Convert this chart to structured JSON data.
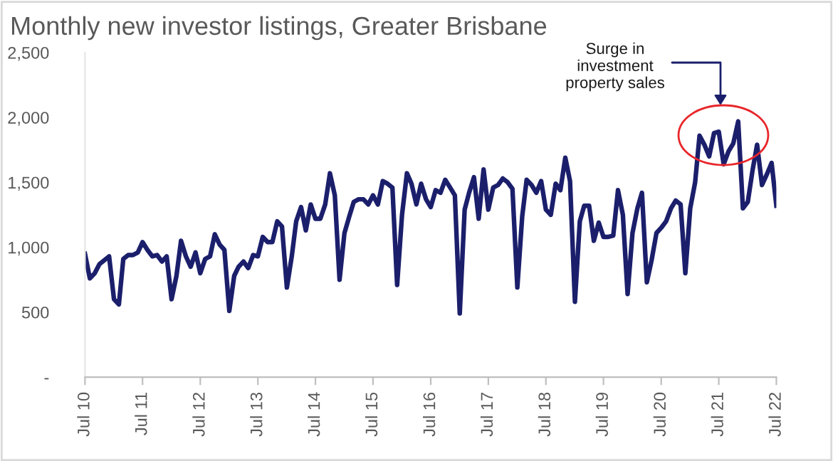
{
  "chart_data": {
    "type": "line",
    "title": "Monthly new investor listings, Greater Brisbane",
    "x": [
      "2010-07",
      "2010-08",
      "2010-09",
      "2010-10",
      "2010-11",
      "2010-12",
      "2011-01",
      "2011-02",
      "2011-03",
      "2011-04",
      "2011-05",
      "2011-06",
      "2011-07",
      "2011-08",
      "2011-09",
      "2011-10",
      "2011-11",
      "2011-12",
      "2012-01",
      "2012-02",
      "2012-03",
      "2012-04",
      "2012-05",
      "2012-06",
      "2012-07",
      "2012-08",
      "2012-09",
      "2012-10",
      "2012-11",
      "2012-12",
      "2013-01",
      "2013-02",
      "2013-03",
      "2013-04",
      "2013-05",
      "2013-06",
      "2013-07",
      "2013-08",
      "2013-09",
      "2013-10",
      "2013-11",
      "2013-12",
      "2014-01",
      "2014-02",
      "2014-03",
      "2014-04",
      "2014-05",
      "2014-06",
      "2014-07",
      "2014-08",
      "2014-09",
      "2014-10",
      "2014-11",
      "2014-12",
      "2015-01",
      "2015-02",
      "2015-03",
      "2015-04",
      "2015-05",
      "2015-06",
      "2015-07",
      "2015-08",
      "2015-09",
      "2015-10",
      "2015-11",
      "2015-12",
      "2016-01",
      "2016-02",
      "2016-03",
      "2016-04",
      "2016-05",
      "2016-06",
      "2016-07",
      "2016-08",
      "2016-09",
      "2016-10",
      "2016-11",
      "2016-12",
      "2017-01",
      "2017-02",
      "2017-03",
      "2017-04",
      "2017-05",
      "2017-06",
      "2017-07",
      "2017-08",
      "2017-09",
      "2017-10",
      "2017-11",
      "2017-12",
      "2018-01",
      "2018-02",
      "2018-03",
      "2018-04",
      "2018-05",
      "2018-06",
      "2018-07",
      "2018-08",
      "2018-09",
      "2018-10",
      "2018-11",
      "2018-12",
      "2019-01",
      "2019-02",
      "2019-03",
      "2019-04",
      "2019-05",
      "2019-06",
      "2019-07",
      "2019-08",
      "2019-09",
      "2019-10",
      "2019-11",
      "2019-12",
      "2020-01",
      "2020-02",
      "2020-03",
      "2020-04",
      "2020-05",
      "2020-06",
      "2020-07",
      "2020-08",
      "2020-09",
      "2020-10",
      "2020-11",
      "2020-12",
      "2021-01",
      "2021-02",
      "2021-03",
      "2021-04",
      "2021-05",
      "2021-06",
      "2021-07",
      "2021-08",
      "2021-09",
      "2021-10",
      "2021-11",
      "2021-12",
      "2022-01",
      "2022-02",
      "2022-03",
      "2022-04",
      "2022-05",
      "2022-06",
      "2022-07"
    ],
    "series": [
      {
        "color": "#1b1f6b",
        "values": [
          950,
          760,
          800,
          870,
          900,
          930,
          600,
          560,
          910,
          940,
          940,
          960,
          1040,
          980,
          930,
          940,
          890,
          930,
          600,
          780,
          1050,
          930,
          850,
          960,
          800,
          910,
          930,
          1100,
          1020,
          980,
          510,
          780,
          850,
          890,
          840,
          940,
          930,
          1080,
          1040,
          1040,
          1200,
          1160,
          690,
          930,
          1200,
          1310,
          1130,
          1330,
          1220,
          1220,
          1330,
          1570,
          1400,
          750,
          1110,
          1240,
          1350,
          1370,
          1370,
          1330,
          1400,
          1330,
          1510,
          1490,
          1460,
          710,
          1250,
          1570,
          1490,
          1330,
          1490,
          1370,
          1310,
          1440,
          1420,
          1520,
          1460,
          1400,
          490,
          1290,
          1420,
          1540,
          1220,
          1600,
          1290,
          1460,
          1480,
          1530,
          1500,
          1450,
          690,
          1240,
          1520,
          1480,
          1420,
          1510,
          1290,
          1250,
          1490,
          1440,
          1690,
          1510,
          580,
          1200,
          1320,
          1320,
          1050,
          1190,
          1080,
          1080,
          1090,
          1440,
          1250,
          640,
          1110,
          1300,
          1420,
          730,
          900,
          1110,
          1150,
          1200,
          1300,
          1360,
          1330,
          800,
          1300,
          1500,
          1860,
          1790,
          1700,
          1880,
          1890,
          1640,
          1740,
          1800,
          1970,
          1300,
          1350,
          1600,
          1790,
          1480,
          1560,
          1650,
          1320
        ]
      }
    ],
    "xlim": [
      "2010-07",
      "2022-07"
    ],
    "xticks": [
      {
        "value": "2010-07",
        "label": "Jul 10"
      },
      {
        "value": "2011-07",
        "label": "Jul 11"
      },
      {
        "value": "2012-07",
        "label": "Jul 12"
      },
      {
        "value": "2013-07",
        "label": "Jul 13"
      },
      {
        "value": "2014-07",
        "label": "Jul 14"
      },
      {
        "value": "2015-07",
        "label": "Jul 15"
      },
      {
        "value": "2016-07",
        "label": "Jul 16"
      },
      {
        "value": "2017-07",
        "label": "Jul 17"
      },
      {
        "value": "2018-07",
        "label": "Jul 18"
      },
      {
        "value": "2019-07",
        "label": "Jul 19"
      },
      {
        "value": "2020-07",
        "label": "Jul 20"
      },
      {
        "value": "2021-07",
        "label": "Jul 21"
      },
      {
        "value": "2022-07",
        "label": "Jul 22"
      }
    ],
    "ylim": [
      0,
      2500
    ],
    "yticks": [
      {
        "value": 0,
        "label": "-"
      },
      500,
      {
        "value": 1000,
        "label": "1,000"
      },
      {
        "value": 1500,
        "label": "1,500"
      },
      {
        "value": 2000,
        "label": "2,000"
      },
      {
        "value": 2500,
        "label": "2,500"
      }
    ],
    "grid": false,
    "legend": false,
    "marker": "none",
    "line_style": "solid",
    "annotations": [
      "Surge in\ninvestment\nproperty sales"
    ]
  }
}
